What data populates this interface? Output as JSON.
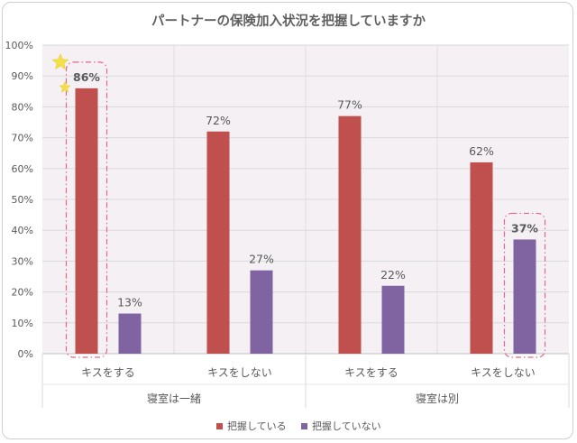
{
  "chart_data": {
    "type": "bar",
    "title": "パートナーの保険加入状況を把握していますか",
    "groups": [
      {
        "label": "寝室は一緒",
        "categories": [
          "キスをする",
          "キスをしない"
        ]
      },
      {
        "label": "寝室は別",
        "categories": [
          "キスをする",
          "キスをしない"
        ]
      }
    ],
    "categories": [
      "キスをする",
      "キスをしない",
      "キスをする",
      "キスをしない"
    ],
    "series": [
      {
        "name": "把握している",
        "values": [
          86,
          72,
          77,
          62
        ],
        "labels": [
          "86%",
          "72%",
          "77%",
          "62%"
        ],
        "color": "#c0504d"
      },
      {
        "name": "把握していない",
        "values": [
          13,
          27,
          22,
          37
        ],
        "labels": [
          "13%",
          "27%",
          "22%",
          "37%"
        ],
        "color": "#8064a2"
      }
    ],
    "highlighted_labels": [
      {
        "series": 0,
        "index": 0,
        "color": "#e00000"
      },
      {
        "series": 1,
        "index": 3,
        "color": "#1f5f9f"
      }
    ],
    "ylim": [
      0,
      100
    ],
    "yticks": [
      "0%",
      "10%",
      "20%",
      "30%",
      "40%",
      "50%",
      "60%",
      "70%",
      "80%",
      "90%",
      "100%"
    ],
    "grid": true,
    "legend": "bottom",
    "plot_background": "#f4f0f4",
    "highlight_box_color": "#e8668a",
    "star_color": "#f5e04a"
  }
}
